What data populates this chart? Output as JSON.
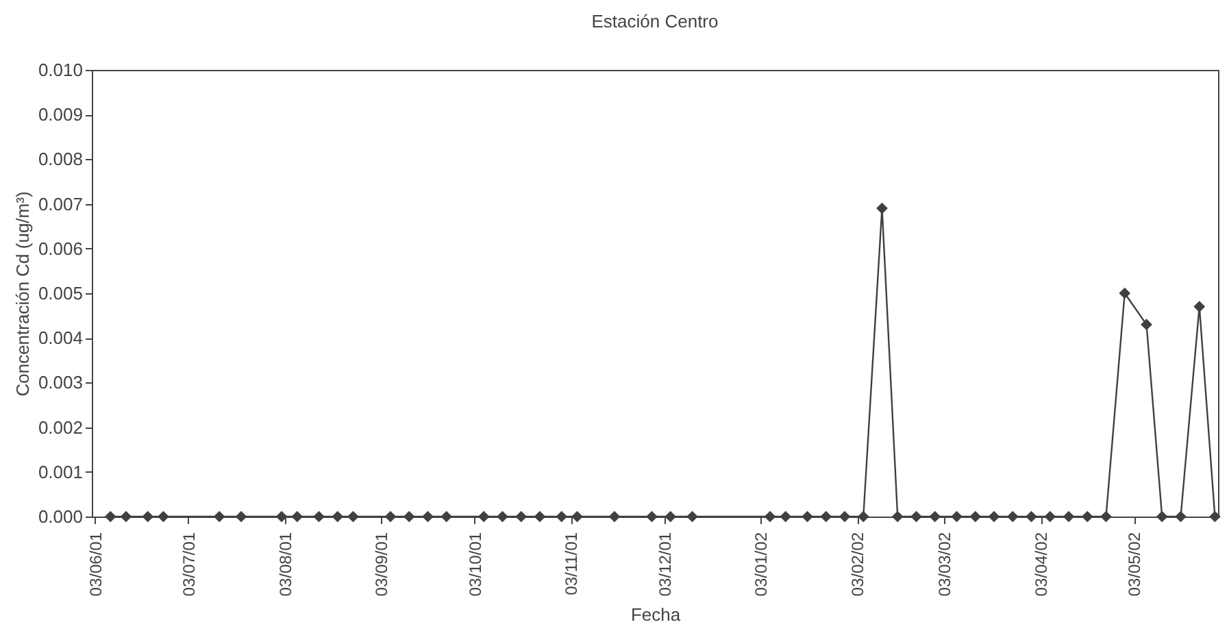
{
  "chart_data": {
    "type": "line",
    "title": "Estación Centro",
    "xlabel": "Fecha",
    "ylabel": "Concentración Cd (ug/m³)",
    "x": [
      "2001-06-08",
      "2001-06-13",
      "2001-06-20",
      "2001-06-25",
      "2001-07-13",
      "2001-07-20",
      "2001-08-02",
      "2001-08-07",
      "2001-08-14",
      "2001-08-20",
      "2001-08-25",
      "2001-09-06",
      "2001-09-12",
      "2001-09-18",
      "2001-09-24",
      "2001-10-06",
      "2001-10-12",
      "2001-10-18",
      "2001-10-24",
      "2001-10-31",
      "2001-11-05",
      "2001-11-17",
      "2001-11-29",
      "2001-12-05",
      "2001-12-12",
      "2002-01-06",
      "2002-01-11",
      "2002-01-18",
      "2002-01-24",
      "2002-01-30",
      "2002-02-05",
      "2002-02-11",
      "2002-02-16",
      "2002-02-22",
      "2002-02-28",
      "2002-03-07",
      "2002-03-13",
      "2002-03-19",
      "2002-03-25",
      "2002-03-31",
      "2002-04-06",
      "2002-04-12",
      "2002-04-18",
      "2002-04-24",
      "2002-04-30",
      "2002-05-07",
      "2002-05-12",
      "2002-05-18",
      "2002-05-24",
      "2002-05-29"
    ],
    "series": [
      {
        "color": "#404040",
        "values": [
          0,
          0,
          0,
          0,
          0,
          0,
          0,
          0,
          0,
          0,
          0,
          0,
          0,
          0,
          0,
          0,
          0,
          0,
          0,
          0,
          0,
          0,
          0,
          0,
          0,
          0,
          0,
          0,
          0,
          0,
          0,
          0.0069,
          0,
          0,
          0,
          0,
          0,
          0,
          0,
          0,
          0,
          0,
          0,
          0,
          0.005,
          0.0043,
          0,
          0,
          0.0047,
          0
        ]
      }
    ],
    "xlim": [
      "2001-06-02",
      "2002-05-30"
    ],
    "xticks": [
      {
        "value": "2001-06-03",
        "label": "03/06/01"
      },
      {
        "value": "2001-07-03",
        "label": "03/07/01"
      },
      {
        "value": "2001-08-03",
        "label": "03/08/01"
      },
      {
        "value": "2001-09-03",
        "label": "03/09/01"
      },
      {
        "value": "2001-10-03",
        "label": "03/10/01"
      },
      {
        "value": "2001-11-03",
        "label": "03/11/01"
      },
      {
        "value": "2001-12-03",
        "label": "03/12/01"
      },
      {
        "value": "2002-01-03",
        "label": "03/01/02"
      },
      {
        "value": "2002-02-03",
        "label": "03/02/02"
      },
      {
        "value": "2002-03-03",
        "label": "03/03/02"
      },
      {
        "value": "2002-04-03",
        "label": "03/04/02"
      },
      {
        "value": "2002-05-03",
        "label": "03/05/02"
      }
    ],
    "ylim": [
      0,
      0.01
    ],
    "yticks": [
      {
        "value": 0,
        "label": "0.000"
      },
      {
        "value": 0.001,
        "label": "0.001"
      },
      {
        "value": 0.002,
        "label": "0.002"
      },
      {
        "value": 0.003,
        "label": "0.003"
      },
      {
        "value": 0.004,
        "label": "0.004"
      },
      {
        "value": 0.005,
        "label": "0.005"
      },
      {
        "value": 0.006,
        "label": "0.006"
      },
      {
        "value": 0.007,
        "label": "0.007"
      },
      {
        "value": 0.008,
        "label": "0.008"
      },
      {
        "value": 0.009,
        "label": "0.009"
      },
      {
        "value": 0.01,
        "label": "0.010"
      }
    ],
    "grid": false,
    "marker": "diamond",
    "line_style": "solid"
  }
}
